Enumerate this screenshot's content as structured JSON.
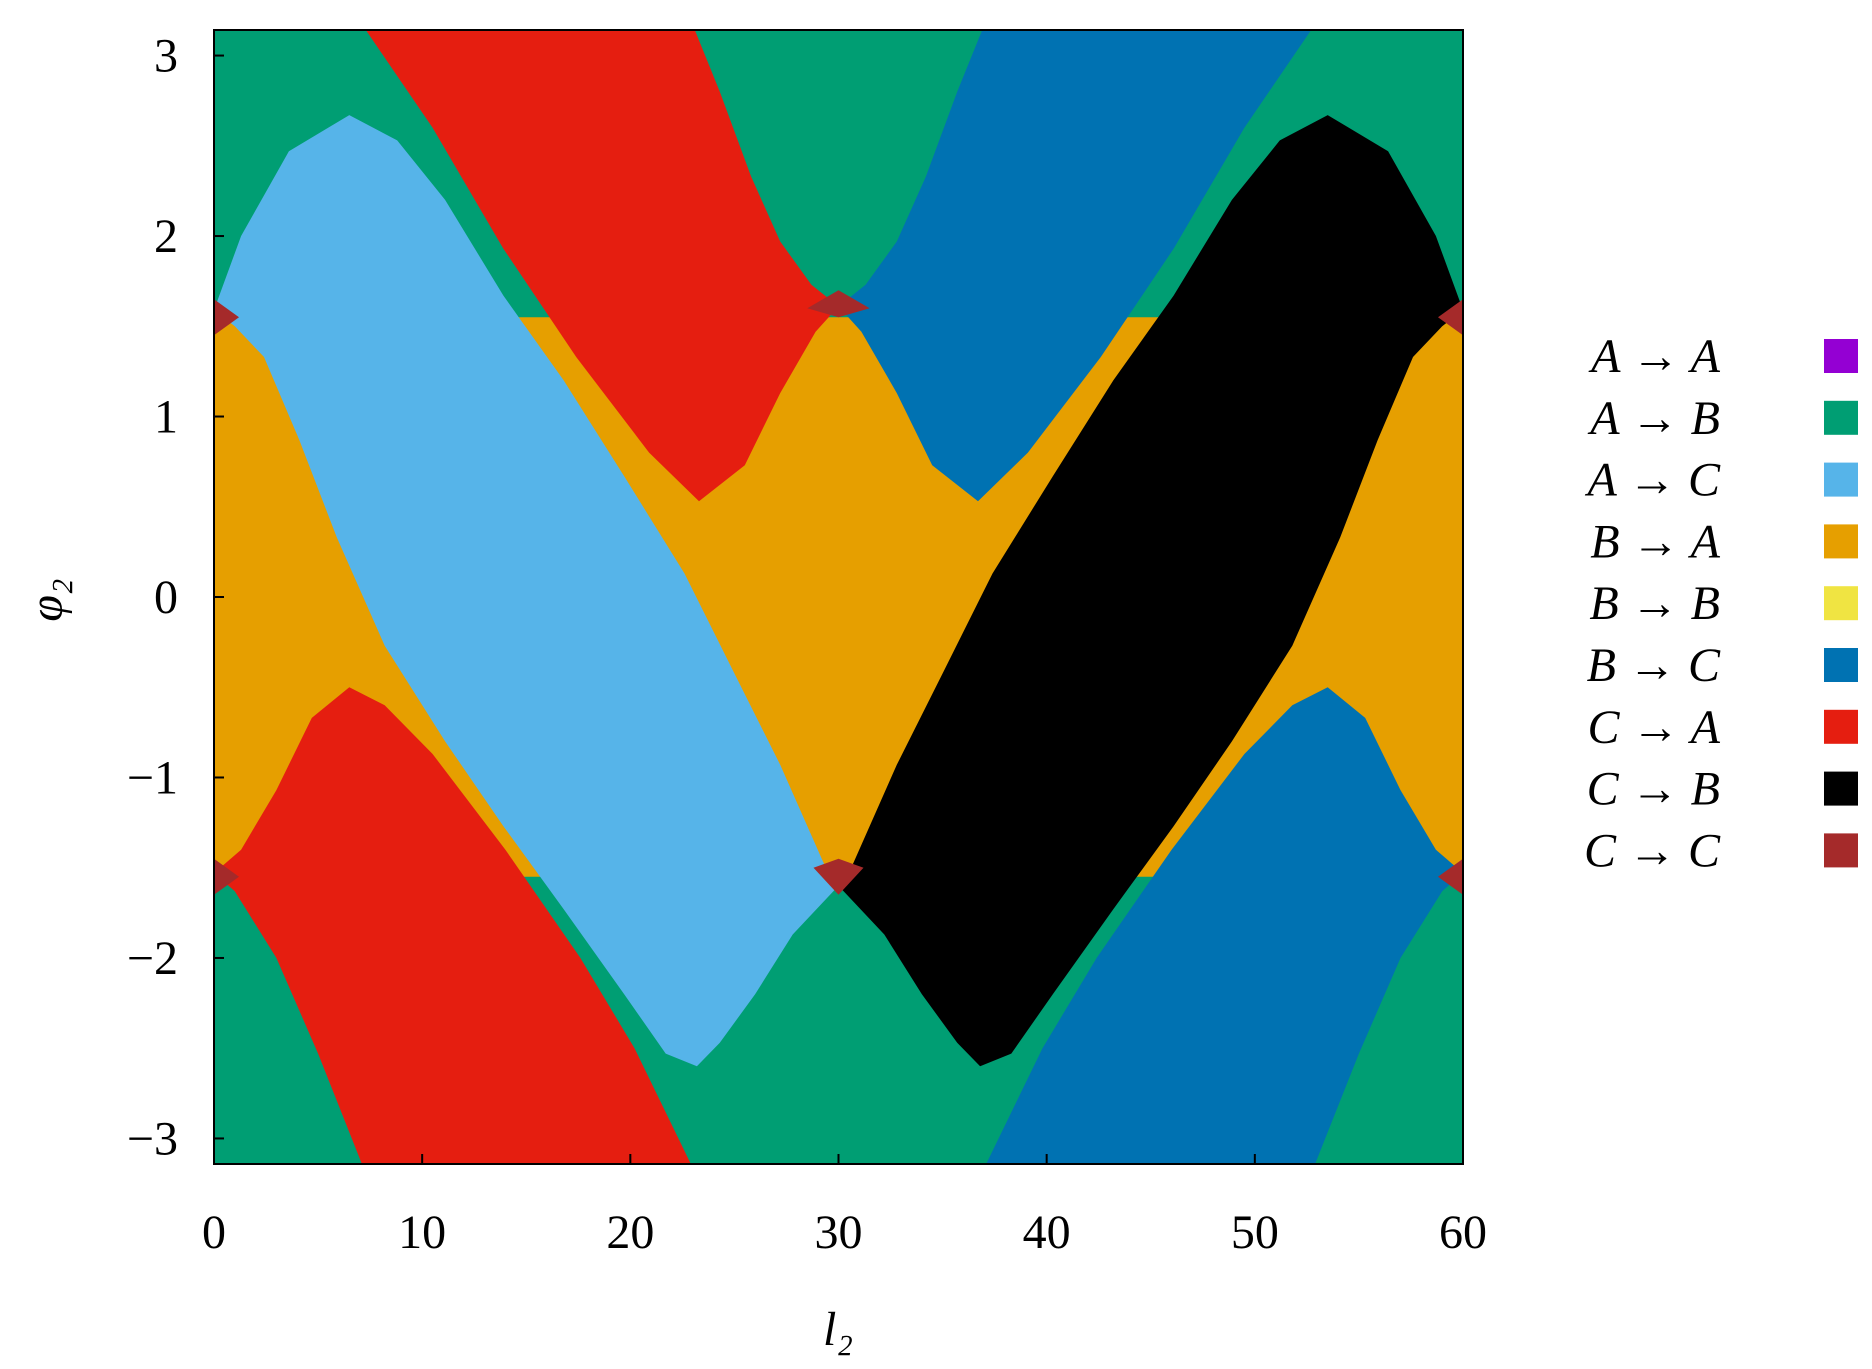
{
  "chart_data": {
    "type": "region",
    "xlabel": "l₂",
    "ylabel": "φ₂",
    "xlim": [
      0,
      60
    ],
    "ylim": [
      -3.1416,
      3.1416
    ],
    "xticks": [
      0,
      10,
      20,
      30,
      40,
      50,
      60
    ],
    "yticks": [
      {
        "value": -3,
        "label": "−3"
      },
      {
        "value": -2,
        "label": "−2"
      },
      {
        "value": -1,
        "label": "−1"
      },
      0,
      1,
      2,
      3
    ],
    "background_series": 1,
    "series": [
      {
        "name": "A → A",
        "color": "#9400d3",
        "polygons": []
      },
      {
        "name": "A → B",
        "color": "#009e73",
        "polygons": []
      },
      {
        "name": "A → C",
        "color": "#56b4e9",
        "polygons": [
          {
            "x": [
              0,
              1.3,
              3.6,
              6.5,
              8.8,
              11.1,
              13.9,
              16.8,
              19.7,
              22.6,
              24.9,
              27.2,
              29.5,
              30,
              27.8,
              26,
              24.3,
              23.2,
              21.7,
              19.7,
              16.8,
              13.9,
              11.1,
              8.2,
              5.9,
              4.1,
              2.4,
              1
            ],
            "y": [
              1.59,
              2.0,
              2.47,
              2.67,
              2.53,
              2.2,
              1.67,
              1.2,
              0.67,
              0.13,
              -0.4,
              -0.93,
              -1.53,
              -1.6,
              -1.87,
              -2.2,
              -2.47,
              -2.6,
              -2.53,
              -2.2,
              -1.73,
              -1.27,
              -0.8,
              -0.27,
              0.33,
              0.87,
              1.33,
              1.5
            ]
          }
        ]
      },
      {
        "name": "B → A",
        "color": "#e69f00",
        "polygons": [
          {
            "x": [
              0,
              60,
              60,
              0
            ],
            "y": [
              1.55,
              1.55,
              -1.55,
              -1.55
            ]
          }
        ]
      },
      {
        "name": "B → B",
        "color": "#f0e442",
        "polygons": []
      },
      {
        "name": "B → C",
        "color": "#0072b2",
        "polygons": [
          {
            "x": [
              52.7,
              36.9,
              35.7,
              34.2,
              32.8,
              31.3,
              30,
              31.1,
              32.8,
              34.5,
              36.7,
              39.1,
              42.6,
              46.1,
              49.5
            ],
            "y": [
              3.14,
              3.14,
              2.8,
              2.33,
              1.97,
              1.73,
              1.61,
              1.47,
              1.13,
              0.73,
              0.53,
              0.8,
              1.33,
              1.93,
              2.6
            ]
          },
          {
            "x": [
              60,
              58.7,
              57,
              55.3,
              53.5,
              51.8,
              49.5,
              46,
              42.4,
              39.8,
              37.1,
              52.9,
              55,
              57,
              59
            ],
            "y": [
              -1.53,
              -1.4,
              -1.07,
              -0.67,
              -0.5,
              -0.6,
              -0.87,
              -1.4,
              -2.0,
              -2.5,
              -3.14,
              -3.14,
              -2.53,
              -2.0,
              -1.63
            ]
          }
        ]
      },
      {
        "name": "C → A",
        "color": "#e51e10",
        "polygons": [
          {
            "x": [
              7.3,
              23.1,
              24.3,
              25.8,
              27.2,
              28.7,
              30,
              28.9,
              27.2,
              25.5,
              23.3,
              20.9,
              17.4,
              13.9,
              10.5
            ],
            "y": [
              3.14,
              3.14,
              2.8,
              2.33,
              1.97,
              1.73,
              1.61,
              1.47,
              1.13,
              0.73,
              0.53,
              0.8,
              1.33,
              1.93,
              2.6
            ]
          },
          {
            "x": [
              0,
              1.3,
              3,
              4.7,
              6.5,
              8.2,
              10.5,
              14,
              17.6,
              20.2,
              22.9,
              7.1,
              5,
              3,
              1
            ],
            "y": [
              -1.53,
              -1.4,
              -1.07,
              -0.67,
              -0.5,
              -0.6,
              -0.87,
              -1.4,
              -2.0,
              -2.5,
              -3.14,
              -3.14,
              -2.53,
              -2.0,
              -1.63
            ]
          }
        ]
      },
      {
        "name": "C → B",
        "color": "#000000",
        "polygons": [
          {
            "x": [
              60,
              58.7,
              56.4,
              53.5,
              51.2,
              48.9,
              46.1,
              43.2,
              40.3,
              37.4,
              35.1,
              32.8,
              30.5,
              30,
              32.2,
              34,
              35.7,
              36.8,
              38.3,
              40.3,
              43.2,
              46.1,
              48.9,
              51.8,
              54.1,
              55.9,
              57.6,
              59
            ],
            "y": [
              1.59,
              2.0,
              2.47,
              2.67,
              2.53,
              2.2,
              1.67,
              1.2,
              0.67,
              0.13,
              -0.4,
              -0.93,
              -1.53,
              -1.6,
              -1.87,
              -2.2,
              -2.47,
              -2.6,
              -2.53,
              -2.2,
              -1.73,
              -1.27,
              -0.8,
              -0.27,
              0.33,
              0.87,
              1.33,
              1.5
            ]
          }
        ]
      },
      {
        "name": "C → C",
        "color": "#a52a2a",
        "polygons": [
          {
            "x": [
              28.5,
              30,
              31.5,
              30
            ],
            "y": [
              1.6,
              1.55,
              1.6,
              1.7
            ]
          },
          {
            "x": [
              28.8,
              30,
              31.2,
              30
            ],
            "y": [
              -1.5,
              -1.45,
              -1.5,
              -1.65
            ]
          },
          {
            "x": [
              0,
              1.2,
              0
            ],
            "y": [
              1.65,
              1.55,
              1.45
            ]
          },
          {
            "x": [
              0,
              1.2,
              0
            ],
            "y": [
              -1.45,
              -1.55,
              -1.65
            ]
          },
          {
            "x": [
              60,
              58.8,
              60
            ],
            "y": [
              1.65,
              1.55,
              1.45
            ]
          },
          {
            "x": [
              60,
              58.8,
              60
            ],
            "y": [
              -1.45,
              -1.55,
              -1.65
            ]
          }
        ]
      }
    ]
  }
}
